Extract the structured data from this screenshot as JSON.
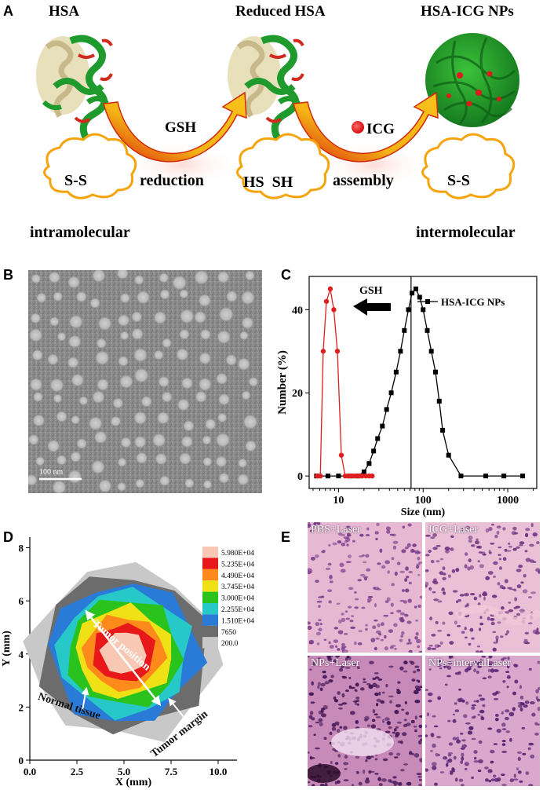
{
  "panels": {
    "A": {
      "letter": "A",
      "stage_titles": [
        "HSA",
        "Reduced HSA",
        "HSA-ICG NPs"
      ],
      "arrow1_label": "GSH",
      "arrow2_label": "ICG",
      "cloud_texts": [
        "S-S",
        "HS  SH",
        "S-S"
      ],
      "step_labels": [
        "reduction",
        "assembly"
      ],
      "bottom_left": "intramolecular",
      "bottom_right": "intermolecular",
      "colors": {
        "helix": "#1f9a2c",
        "loop": "#d22a1e",
        "arrow": "#f4b316",
        "cloud": "#f5a40c",
        "icg": "#e8180f"
      }
    },
    "B": {
      "letter": "B",
      "scale_bar": "100 nm"
    },
    "C": {
      "letter": "C",
      "gsh_label": "GSH"
    },
    "D": {
      "letter": "D",
      "annotations": [
        "Tumor position",
        "Normal tissue",
        "Tumor margin"
      ]
    },
    "E": {
      "letter": "E",
      "quadrants": [
        "PBS+Laser",
        "ICG+Laser",
        "NPs+Laser",
        "NPs+intervalLaser"
      ]
    }
  },
  "chart_data": [
    {
      "type": "line",
      "panel": "C",
      "xlabel": "Size (nm)",
      "ylabel": "Number (%)",
      "xscale": "log",
      "xlim": [
        4.5,
        2200
      ],
      "ylim": [
        -3,
        48
      ],
      "xticks": [
        10,
        100,
        1000
      ],
      "xtick_labels": [
        "10",
        "100",
        "1000"
      ],
      "yticks": [
        0,
        20,
        40
      ],
      "ytick_labels": [
        "0",
        "20",
        "40"
      ],
      "vline_x": 72,
      "legend_position": "top-right",
      "series": [
        {
          "name": "HSA-ICG NPs",
          "color": "#000000",
          "marker": "square",
          "x": [
            5.5,
            7.5,
            10,
            14,
            17,
            20,
            23,
            26,
            29,
            33,
            37,
            42,
            48,
            54,
            60,
            67,
            74,
            82,
            91,
            100,
            112,
            125,
            140,
            155,
            170,
            200,
            280,
            550,
            900,
            1500
          ],
          "y": [
            0,
            0,
            0,
            0,
            0,
            1,
            3,
            6,
            9,
            12,
            16,
            20,
            25,
            30,
            35,
            40,
            44,
            45,
            43,
            40,
            35,
            30,
            25,
            18,
            11,
            5,
            0,
            0,
            0,
            0
          ]
        },
        {
          "color": "#e02020",
          "marker": "circle",
          "x": [
            5.6,
            6.1,
            6.6,
            7.2,
            8.0,
            8.8,
            9.7,
            10.8,
            12,
            13,
            14,
            15,
            16,
            17.5,
            19,
            21,
            23,
            25
          ],
          "y": [
            0,
            0,
            30,
            42,
            45,
            40,
            30,
            5,
            0,
            0,
            0,
            0,
            0,
            0,
            0,
            0,
            0,
            0
          ]
        }
      ]
    },
    {
      "type": "heatmap",
      "panel": "D",
      "xlabel": "X (mm)",
      "ylabel": "Y (mm)",
      "xlim": [
        0,
        11
      ],
      "ylim": [
        0,
        8.4
      ],
      "xticks": [
        0,
        2.5,
        5,
        7.5,
        10
      ],
      "xtick_labels": [
        "0.0",
        "2.5",
        "5.0",
        "7.5",
        "10.0"
      ],
      "yticks": [
        0,
        2,
        4,
        6,
        8
      ],
      "ytick_labels": [
        "0",
        "2",
        "4",
        "6",
        "8"
      ],
      "legend_position": "top-right",
      "levels": [
        "5.980E+04",
        "5.235E+04",
        "4.490E+04",
        "3.745E+04",
        "3.000E+04",
        "2.255E+04",
        "1.510E+04",
        "7650",
        "200.0"
      ],
      "level_colors": [
        "#f8c8b4",
        "#e8181a",
        "#ff8a1c",
        "#f0e016",
        "#2ac21c",
        "#26c8c8",
        "#2a7ad8",
        "#6c6c6c",
        "#c8c8c8"
      ],
      "center": [
        5.0,
        3.8
      ]
    }
  ]
}
